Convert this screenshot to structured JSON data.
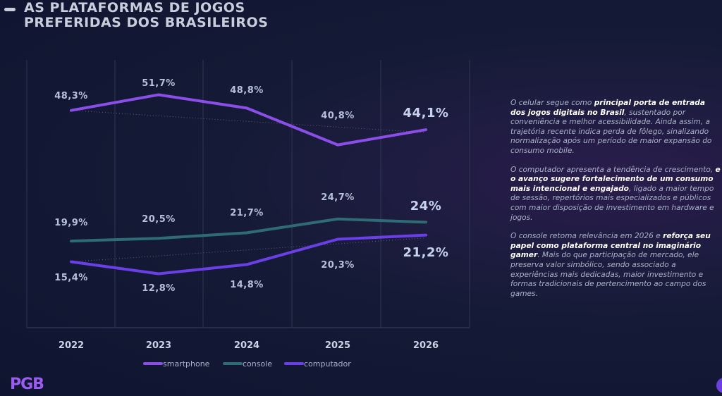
{
  "header": {
    "title_line1": "AS PLATAFORMAS DE JOGOS",
    "title_line2": "PREFERIDAS DOS BRASILEIROS"
  },
  "chart_data": {
    "type": "line",
    "categories": [
      "2022",
      "2023",
      "2024",
      "2025",
      "2026"
    ],
    "series": [
      {
        "name": "smartphone",
        "values": [
          48.3,
          51.7,
          48.8,
          40.8,
          44.1
        ],
        "labels": [
          "48,3%",
          "51,7%",
          "48,8%",
          "40,8%",
          "44,1%"
        ],
        "color": "#8b4ee8"
      },
      {
        "name": "console",
        "values": [
          19.9,
          20.5,
          21.7,
          24.7,
          24.0
        ],
        "labels": [
          "19,9%",
          "20,5%",
          "21,7%",
          "24,7%",
          "24%"
        ],
        "color": "#2f6b74"
      },
      {
        "name": "computador",
        "values": [
          15.4,
          12.8,
          14.8,
          20.3,
          21.2
        ],
        "labels": [
          "15,4%",
          "12,8%",
          "14,8%",
          "20,3%",
          "21,2%"
        ],
        "color": "#6a3fe6"
      }
    ],
    "legend_position": "bottom"
  },
  "side_text": {
    "p1": [
      {
        "t": "O celular segue como ",
        "b": false
      },
      {
        "t": "principal porta de entrada dos jogos digitais no Brasil",
        "b": true
      },
      {
        "t": ", sustentado por conveniência e melhor acessibilidade. Ainda assim, a trajetória recente indica perda de fôlego, sinalizando normalização após um período de maior expansão do consumo mobile.",
        "b": false
      }
    ],
    "p2": [
      {
        "t": "O computador apresenta a tendência de crescimento, ",
        "b": false
      },
      {
        "t": "e o avanço sugere fortalecimento de um consumo mais intencional e engajado",
        "b": true
      },
      {
        "t": ", ligado a maior tempo de sessão, repertórios mais especializados e públicos com maior disposição de investimento em hardware e jogos.",
        "b": false
      }
    ],
    "p3": [
      {
        "t": "O console retoma relevância em 2026 e ",
        "b": false
      },
      {
        "t": "reforça seu papel como plataforma central no imaginário gamer",
        "b": true
      },
      {
        "t": ". Mais do que participação de mercado, ele preserva valor simbólico, sendo associado a experiências mais dedicadas, maior investimento e formas tradicionais de pertencimento ao campo dos games.",
        "b": false
      }
    ]
  },
  "brand": {
    "logo_text": "PGB"
  }
}
